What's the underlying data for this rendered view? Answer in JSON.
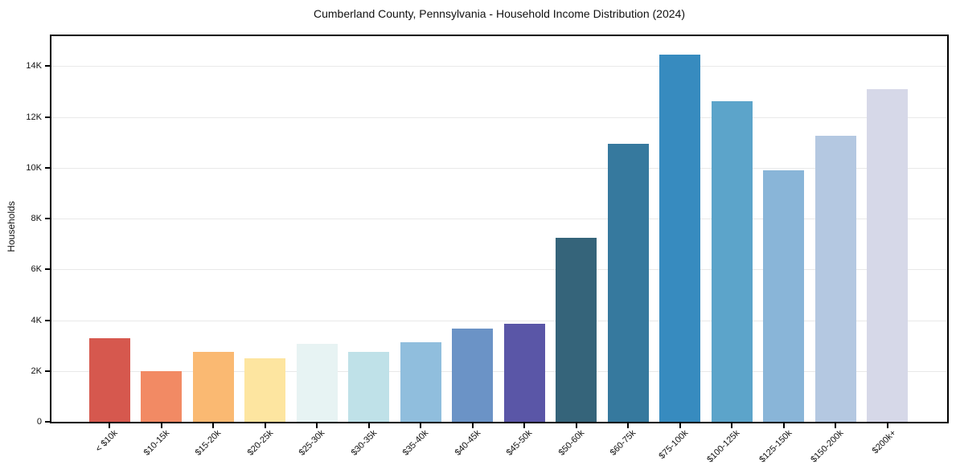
{
  "chart_data": {
    "type": "bar",
    "title": "Cumberland County, Pennsylvania - Household Income Distribution (2024)",
    "xlabel": "",
    "ylabel": "Households",
    "categories": [
      "< $10k",
      "$10-15k",
      "$15-20k",
      "$20-25k",
      "$25-30k",
      "$30-35k",
      "$35-40k",
      "$40-45k",
      "$45-50k",
      "$50-60k",
      "$60-75k",
      "$75-100k",
      "$100-125k",
      "$125-150k",
      "$150-200k",
      "$200k+"
    ],
    "values": [
      3280,
      1980,
      2760,
      2500,
      3080,
      2740,
      3130,
      3680,
      3870,
      7230,
      10930,
      14450,
      12620,
      9890,
      11250,
      13090
    ],
    "bar_colors": [
      "#d6584e",
      "#f28a64",
      "#fab972",
      "#fde5a0",
      "#e7f3f3",
      "#bfe1e8",
      "#90bedd",
      "#6b93c6",
      "#5a56a7",
      "#35647a",
      "#36799e",
      "#378bbf",
      "#5ca4ca",
      "#89b5d8",
      "#b4c8e1",
      "#d6d8e8"
    ],
    "ylim": [
      0,
      15180
    ],
    "yticks": [
      0,
      2000,
      4000,
      6000,
      8000,
      10000,
      12000,
      14000
    ],
    "ytick_labels": [
      "0",
      "2K",
      "4K",
      "6K",
      "8K",
      "10K",
      "12K",
      "14K"
    ],
    "grid": "horizontal",
    "grid_color": "#e9e9e9",
    "axis_color": "#000000",
    "text_color": "#111111",
    "legend": "none"
  }
}
